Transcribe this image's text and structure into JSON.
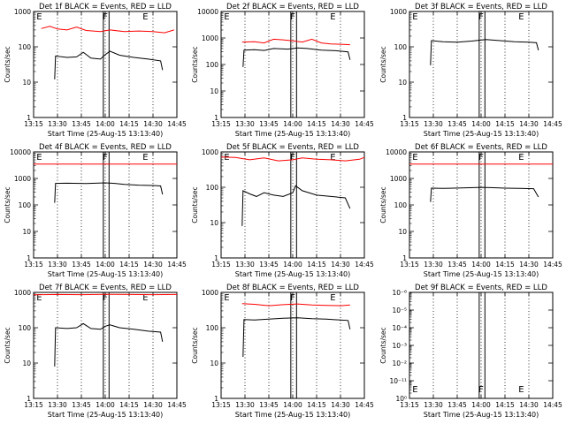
{
  "chart_data": [
    {
      "type": "line",
      "title": "Det 1f BLACK = Events, RED = LLD",
      "ylabel": "Counts/sec",
      "xlabel": "Start Time (25-Aug-15 13:13:40)",
      "x_ticks": [
        "13:15",
        "13:30",
        "13:45",
        "14:00",
        "14:15",
        "14:30",
        "14:45"
      ],
      "y_ticks": [
        "1",
        "10",
        "100",
        "1000"
      ],
      "y_log": true,
      "ylim": [
        1,
        1000
      ],
      "markers": [
        "E",
        "F",
        "E"
      ],
      "series": [
        {
          "name": "LLD",
          "color": "#ff0000",
          "x": [
            13.33,
            13.42,
            13.5,
            13.6,
            13.7,
            13.8,
            13.95,
            14.05,
            14.2,
            14.35,
            14.5,
            14.62,
            14.72
          ],
          "values": [
            330,
            380,
            320,
            300,
            360,
            290,
            270,
            300,
            270,
            280,
            270,
            250,
            300
          ]
        },
        {
          "name": "Events",
          "color": "#000000",
          "x": [
            13.47,
            13.48,
            13.6,
            13.7,
            13.77,
            13.85,
            13.95,
            14.0,
            14.05,
            14.15,
            14.3,
            14.45,
            14.58,
            14.6
          ],
          "values": [
            12,
            55,
            50,
            52,
            70,
            48,
            45,
            60,
            75,
            58,
            50,
            45,
            40,
            22
          ]
        }
      ]
    },
    {
      "type": "line",
      "title": "Det 2f BLACK = Events, RED = LLD",
      "ylabel": "Counts/sec",
      "xlabel": "Start Time (25-Aug-15 13:13:40)",
      "x_ticks": [
        "13:15",
        "13:30",
        "13:45",
        "14:00",
        "14:15",
        "14:30",
        "14:45"
      ],
      "y_ticks": [
        "1",
        "10",
        "100",
        "1000",
        "10000"
      ],
      "y_log": true,
      "ylim": [
        1,
        10000
      ],
      "markers": [
        "E",
        "F",
        "E"
      ],
      "series": [
        {
          "name": "LLD",
          "color": "#ff0000",
          "x": [
            13.47,
            13.6,
            13.7,
            13.8,
            13.9,
            14.0,
            14.1,
            14.2,
            14.3,
            14.4,
            14.5,
            14.6
          ],
          "values": [
            700,
            720,
            650,
            900,
            850,
            780,
            700,
            900,
            650,
            600,
            580,
            560
          ]
        },
        {
          "name": "Events",
          "color": "#000000",
          "x": [
            13.48,
            13.49,
            13.6,
            13.7,
            13.8,
            13.95,
            14.05,
            14.15,
            14.3,
            14.45,
            14.58,
            14.6
          ],
          "values": [
            80,
            350,
            360,
            340,
            400,
            380,
            420,
            400,
            350,
            330,
            300,
            150
          ]
        }
      ]
    },
    {
      "type": "line",
      "title": "Det 3f BLACK = Events, RED = LLD",
      "ylabel": "Counts/sec",
      "xlabel": "Start Time (25-Aug-15 13:13:40)",
      "x_ticks": [
        "13:15",
        "13:30",
        "13:45",
        "14:00",
        "14:15",
        "14:30",
        "14:45"
      ],
      "y_ticks": [
        "1",
        "10",
        "100",
        "1000"
      ],
      "y_log": true,
      "ylim": [
        1,
        1000
      ],
      "markers": [
        "E",
        "F",
        "E"
      ],
      "series": [
        {
          "name": "Events",
          "color": "#000000",
          "x": [
            13.47,
            13.48,
            13.6,
            13.75,
            13.9,
            14.05,
            14.2,
            14.35,
            14.5,
            14.58,
            14.6
          ],
          "values": [
            30,
            150,
            140,
            135,
            145,
            160,
            150,
            140,
            135,
            130,
            80
          ]
        }
      ]
    },
    {
      "type": "line",
      "title": "Det 4f BLACK = Events, RED = LLD",
      "ylabel": "Counts/sec",
      "xlabel": "Start Time (25-Aug-15 13:13:40)",
      "x_ticks": [
        "13:15",
        "13:30",
        "13:45",
        "14:00",
        "14:15",
        "14:30",
        "14:45"
      ],
      "y_ticks": [
        "1",
        "10",
        "100",
        "1000",
        "10000"
      ],
      "y_log": true,
      "ylim": [
        1,
        10000
      ],
      "markers": [
        "E",
        "F",
        "E"
      ],
      "series": [
        {
          "name": "LLD",
          "color": "#ff0000",
          "x": [
            13.25,
            13.5,
            13.75,
            14.0,
            14.25,
            14.5,
            14.75
          ],
          "values": [
            3500,
            3500,
            3500,
            3500,
            3500,
            3500,
            3500
          ]
        },
        {
          "name": "Events",
          "color": "#000000",
          "x": [
            13.47,
            13.48,
            13.6,
            13.8,
            14.0,
            14.1,
            14.2,
            14.35,
            14.5,
            14.58,
            14.6
          ],
          "values": [
            120,
            650,
            660,
            640,
            680,
            650,
            600,
            560,
            540,
            520,
            250
          ]
        }
      ]
    },
    {
      "type": "line",
      "title": "Det 5f BLACK = Events, RED = LLD",
      "ylabel": "Counts/sec",
      "xlabel": "Start Time (25-Aug-15 13:13:40)",
      "x_ticks": [
        "13:15",
        "13:30",
        "13:45",
        "14:00",
        "14:15",
        "14:30",
        "14:45"
      ],
      "y_ticks": [
        "1",
        "10",
        "100",
        "1000"
      ],
      "y_log": true,
      "ylim": [
        1,
        1000
      ],
      "markers": [
        "E",
        "F",
        "E"
      ],
      "series": [
        {
          "name": "LLD",
          "color": "#ff0000",
          "x": [
            13.25,
            13.4,
            13.55,
            13.7,
            13.85,
            14.0,
            14.1,
            14.25,
            14.4,
            14.55,
            14.7,
            14.75
          ],
          "values": [
            720,
            700,
            600,
            680,
            560,
            600,
            680,
            620,
            600,
            560,
            620,
            700
          ]
        },
        {
          "name": "Events",
          "color": "#000000",
          "x": [
            13.47,
            13.48,
            13.55,
            13.62,
            13.7,
            13.8,
            13.9,
            14.0,
            14.03,
            14.1,
            14.25,
            14.4,
            14.55,
            14.6
          ],
          "values": [
            8,
            80,
            65,
            55,
            70,
            60,
            55,
            70,
            110,
            80,
            60,
            55,
            50,
            25
          ]
        }
      ]
    },
    {
      "type": "line",
      "title": "Det 6f BLACK = Events, RED = LLD",
      "ylabel": "Counts/sec",
      "xlabel": "Start Time (25-Aug-15 13:13:40)",
      "x_ticks": [
        "13:15",
        "13:30",
        "13:45",
        "14:00",
        "14:15",
        "14:30",
        "14:45"
      ],
      "y_ticks": [
        "1",
        "10",
        "100",
        "1000",
        "10000"
      ],
      "y_log": true,
      "ylim": [
        1,
        10000
      ],
      "markers": [
        "E",
        "F",
        "E"
      ],
      "series": [
        {
          "name": "LLD",
          "color": "#ff0000",
          "x": [
            13.25,
            13.5,
            13.75,
            14.0,
            14.25,
            14.5,
            14.75
          ],
          "values": [
            3500,
            3500,
            3500,
            3500,
            3500,
            3500,
            3500
          ]
        },
        {
          "name": "Events",
          "color": "#000000",
          "x": [
            13.47,
            13.48,
            13.6,
            13.8,
            14.0,
            14.1,
            14.25,
            14.4,
            14.55,
            14.6
          ],
          "values": [
            130,
            430,
            420,
            440,
            460,
            450,
            430,
            420,
            410,
            200
          ]
        }
      ]
    },
    {
      "type": "line",
      "title": "Det 7f BLACK = Events, RED = LLD",
      "ylabel": "Counts/sec",
      "xlabel": "Start Time (25-Aug-15 13:13:40)",
      "x_ticks": [
        "13:15",
        "13:30",
        "13:45",
        "14:00",
        "14:15",
        "14:30",
        "14:45"
      ],
      "y_ticks": [
        "1",
        "10",
        "100",
        "1000"
      ],
      "y_log": true,
      "ylim": [
        1,
        1000
      ],
      "markers": [
        "E",
        "F",
        "E"
      ],
      "series": [
        {
          "name": "LLD",
          "color": "#ff0000",
          "x": [
            13.25,
            13.5,
            13.75,
            14.0,
            14.25,
            14.5,
            14.75
          ],
          "values": [
            850,
            870,
            860,
            880,
            870,
            860,
            870
          ]
        },
        {
          "name": "Events",
          "color": "#000000",
          "x": [
            13.47,
            13.48,
            13.6,
            13.7,
            13.77,
            13.85,
            13.95,
            14.0,
            14.05,
            14.15,
            14.3,
            14.45,
            14.58,
            14.6
          ],
          "values": [
            8,
            100,
            95,
            100,
            130,
            95,
            90,
            110,
            120,
            100,
            90,
            80,
            75,
            40
          ]
        }
      ]
    },
    {
      "type": "line",
      "title": "Det 8f BLACK = Events, RED = LLD",
      "ylabel": "Counts/sec",
      "xlabel": "Start Time (25-Aug-15 13:13:40)",
      "x_ticks": [
        "13:15",
        "13:30",
        "13:45",
        "14:00",
        "14:15",
        "14:30",
        "14:45"
      ],
      "y_ticks": [
        "1",
        "10",
        "100",
        "1000"
      ],
      "y_log": true,
      "ylim": [
        1,
        1000
      ],
      "markers": [
        "E",
        "F",
        "E"
      ],
      "series": [
        {
          "name": "LLD",
          "color": "#ff0000",
          "x": [
            13.47,
            13.6,
            13.75,
            13.9,
            14.05,
            14.2,
            14.35,
            14.5,
            14.6
          ],
          "values": [
            480,
            460,
            420,
            450,
            470,
            440,
            430,
            420,
            440
          ]
        },
        {
          "name": "Events",
          "color": "#000000",
          "x": [
            13.48,
            13.49,
            13.6,
            13.75,
            13.9,
            14.05,
            14.2,
            14.35,
            14.5,
            14.58,
            14.6
          ],
          "values": [
            15,
            170,
            165,
            175,
            185,
            190,
            180,
            175,
            165,
            160,
            90
          ]
        }
      ]
    },
    {
      "type": "line",
      "title": "Det 9f BLACK = Events, RED = LLD",
      "ylabel": "Counts/sec",
      "xlabel": "Start Time (25-Aug-15 13:13:40)",
      "x_ticks": [
        "13:15",
        "13:30",
        "13:45",
        "14:00",
        "14:15",
        "14:30",
        "14:45"
      ],
      "y_ticks": [
        "10⁰",
        "10⁻¹¹",
        "10⁻²",
        "10⁻³",
        "10⁻⁴",
        "10⁻⁵",
        "10⁻⁶"
      ],
      "y_log": true,
      "ylim": [
        0,
        1
      ],
      "markers": [
        "E",
        "F",
        "E"
      ],
      "series": []
    }
  ]
}
